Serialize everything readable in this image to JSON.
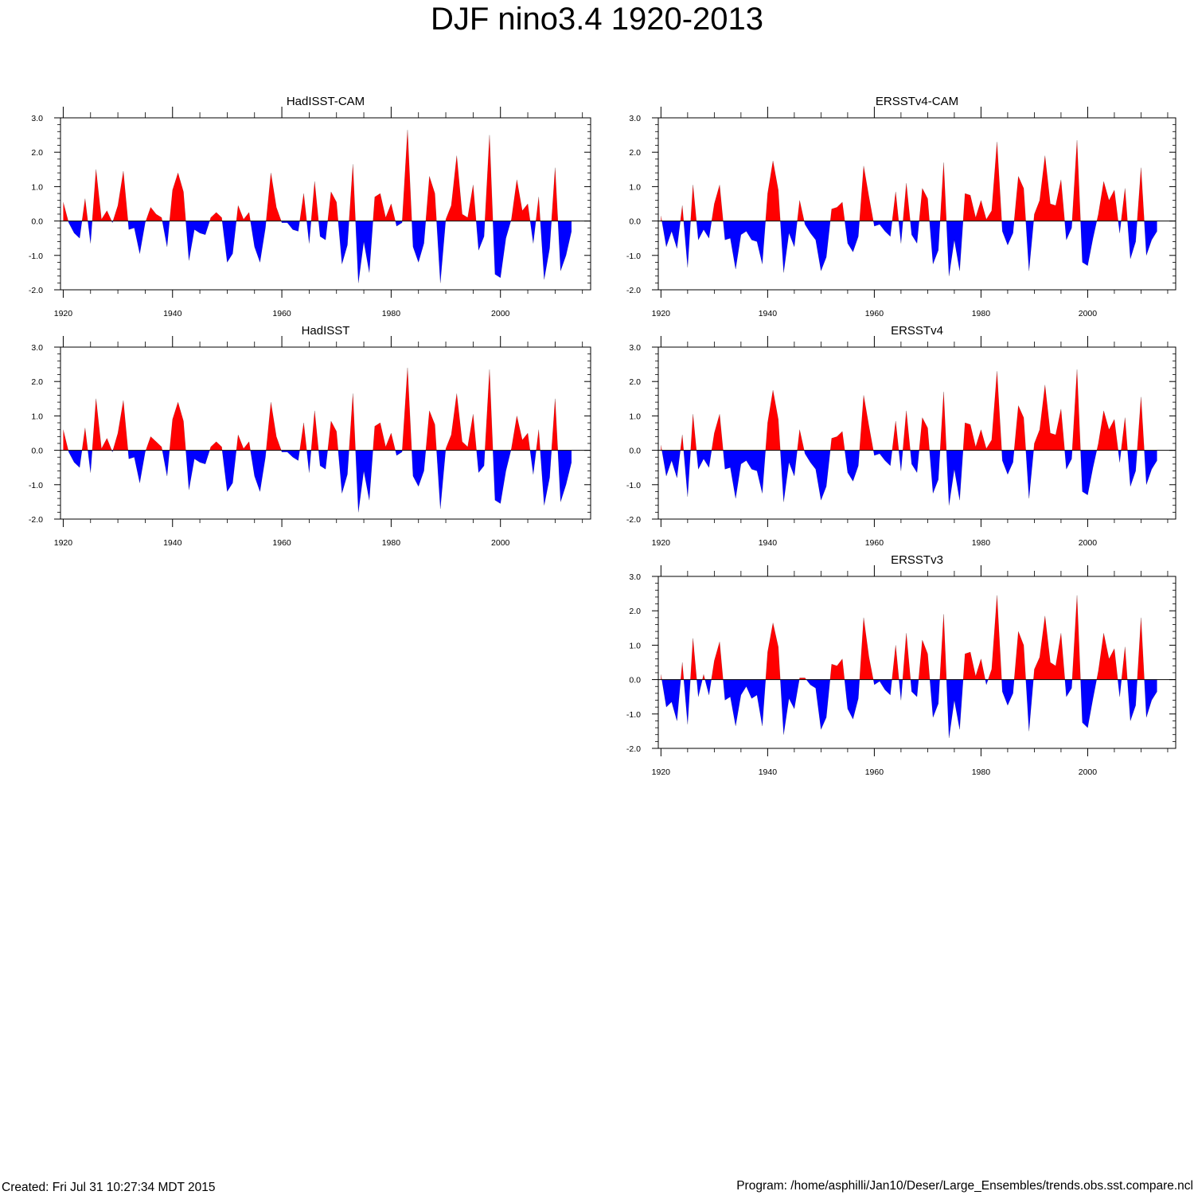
{
  "title": "DJF nino3.4 1920-2013",
  "footer": {
    "created": "Created: Fri Jul 31 10:27:34 MDT 2015",
    "program": "Program: /home/asphilli/Jan10/Deser/Large_Ensembles/trends.obs.sst.compare.ncl"
  },
  "colors": {
    "positive": "#ff0000",
    "negative": "#0000ff",
    "axis": "#000000"
  },
  "chart_data": [
    {
      "type": "area",
      "title": "HadISST-CAM",
      "xlabel": "",
      "ylabel": "",
      "xlim": [
        1919.5,
        2016.5
      ],
      "ylim": [
        -2.0,
        3.0
      ],
      "xticks": [
        1920,
        1940,
        1960,
        1980,
        2000
      ],
      "xtick_labels": [
        "1920",
        "1940",
        "1960",
        "1980",
        "2000"
      ],
      "yticks": [
        -2.0,
        -1.0,
        0.0,
        1.0,
        2.0,
        3.0
      ],
      "ytick_labels": [
        "-2.0",
        "-1.0",
        "0.0",
        "1.0",
        "2.0",
        "3.0"
      ],
      "x_start": 1920,
      "values": [
        0.55,
        -0.05,
        -0.35,
        -0.5,
        0.65,
        -0.65,
        1.5,
        0.05,
        0.3,
        -0.05,
        0.45,
        1.45,
        -0.25,
        -0.2,
        -0.95,
        -0.05,
        0.4,
        0.2,
        0.1,
        -0.75,
        0.9,
        1.4,
        0.85,
        -1.15,
        -0.25,
        -0.35,
        -0.4,
        0.1,
        0.25,
        0.1,
        -1.2,
        -0.95,
        0.45,
        0.05,
        0.25,
        -0.75,
        -1.2,
        -0.2,
        1.4,
        0.4,
        -0.05,
        -0.05,
        -0.25,
        -0.3,
        0.8,
        -0.65,
        1.15,
        -0.45,
        -0.55,
        0.85,
        0.55,
        -1.25,
        -0.7,
        1.65,
        -1.8,
        -0.6,
        -1.5,
        0.7,
        0.8,
        0.1,
        0.5,
        -0.15,
        -0.05,
        2.65,
        -0.75,
        -1.2,
        -0.65,
        1.3,
        0.8,
        -1.8,
        0.05,
        0.45,
        1.9,
        0.2,
        0.1,
        1.05,
        -0.85,
        -0.45,
        2.5,
        -1.55,
        -1.65,
        -0.5,
        0.05,
        1.2,
        0.3,
        0.5,
        -0.65,
        0.7,
        -1.7,
        -0.8,
        1.55,
        -1.45,
        -1.0,
        -0.3
      ]
    },
    {
      "type": "area",
      "title": "ERSSTv4-CAM",
      "xlabel": "",
      "ylabel": "",
      "xlim": [
        1919.5,
        2016.5
      ],
      "ylim": [
        -2.0,
        3.0
      ],
      "xticks": [
        1920,
        1940,
        1960,
        1980,
        2000
      ],
      "xtick_labels": [
        "1920",
        "1940",
        "1960",
        "1980",
        "2000"
      ],
      "yticks": [
        -2.0,
        -1.0,
        0.0,
        1.0,
        2.0,
        3.0
      ],
      "ytick_labels": [
        "-2.0",
        "-1.0",
        "0.0",
        "1.0",
        "2.0",
        "3.0"
      ],
      "x_start": 1920,
      "values": [
        0.15,
        -0.75,
        -0.3,
        -0.8,
        0.45,
        -1.35,
        1.05,
        -0.55,
        -0.25,
        -0.5,
        0.5,
        1.05,
        -0.55,
        -0.5,
        -1.4,
        -0.4,
        -0.3,
        -0.55,
        -0.6,
        -1.25,
        0.8,
        1.75,
        0.9,
        -1.5,
        -0.35,
        -0.75,
        0.6,
        -0.1,
        -0.35,
        -0.55,
        -1.45,
        -1.05,
        0.35,
        0.4,
        0.55,
        -0.65,
        -0.9,
        -0.45,
        1.6,
        0.7,
        -0.15,
        -0.1,
        -0.3,
        -0.45,
        0.85,
        -0.65,
        1.1,
        -0.4,
        -0.65,
        0.95,
        0.65,
        -1.25,
        -0.85,
        1.7,
        -1.6,
        -0.55,
        -1.45,
        0.8,
        0.75,
        0.1,
        0.6,
        0.05,
        0.3,
        2.3,
        -0.3,
        -0.7,
        -0.35,
        1.3,
        0.95,
        -1.45,
        0.2,
        0.6,
        1.9,
        0.5,
        0.45,
        1.2,
        -0.55,
        -0.2,
        2.35,
        -1.2,
        -1.3,
        -0.5,
        0.2,
        1.15,
        0.6,
        0.9,
        -0.35,
        0.95,
        -1.1,
        -0.6,
        1.55,
        -1.0,
        -0.55,
        -0.3
      ]
    },
    {
      "type": "area",
      "title": "HadISST",
      "xlabel": "",
      "ylabel": "",
      "xlim": [
        1919.5,
        2016.5
      ],
      "ylim": [
        -2.0,
        3.0
      ],
      "xticks": [
        1920,
        1940,
        1960,
        1980,
        2000
      ],
      "xtick_labels": [
        "1920",
        "1940",
        "1960",
        "1980",
        "2000"
      ],
      "yticks": [
        -2.0,
        -1.0,
        0.0,
        1.0,
        2.0,
        3.0
      ],
      "ytick_labels": [
        "-2.0",
        "-1.0",
        "0.0",
        "1.0",
        "2.0",
        "3.0"
      ],
      "x_start": 1920,
      "values": [
        0.6,
        -0.05,
        -0.35,
        -0.5,
        0.65,
        -0.65,
        1.5,
        0.05,
        0.35,
        -0.05,
        0.5,
        1.45,
        -0.25,
        -0.2,
        -0.95,
        -0.05,
        0.4,
        0.25,
        0.1,
        -0.75,
        0.9,
        1.4,
        0.85,
        -1.15,
        -0.25,
        -0.35,
        -0.4,
        0.1,
        0.25,
        0.1,
        -1.2,
        -0.95,
        0.45,
        0.05,
        0.25,
        -0.75,
        -1.2,
        -0.2,
        1.4,
        0.4,
        -0.05,
        -0.05,
        -0.2,
        -0.3,
        0.8,
        -0.65,
        1.15,
        -0.45,
        -0.55,
        0.85,
        0.55,
        -1.25,
        -0.7,
        1.65,
        -1.8,
        -0.6,
        -1.45,
        0.7,
        0.8,
        0.1,
        0.5,
        -0.15,
        -0.05,
        2.4,
        -0.75,
        -1.05,
        -0.6,
        1.15,
        0.75,
        -1.7,
        0.05,
        0.45,
        1.65,
        0.25,
        0.1,
        1.05,
        -0.65,
        -0.45,
        2.35,
        -1.45,
        -1.55,
        -0.6,
        0.05,
        1.0,
        0.3,
        0.5,
        -0.7,
        0.6,
        -1.6,
        -0.8,
        1.5,
        -1.5,
        -1.0,
        -0.35
      ]
    },
    {
      "type": "area",
      "title": "ERSSTv4",
      "xlabel": "",
      "ylabel": "",
      "xlim": [
        1919.5,
        2016.5
      ],
      "ylim": [
        -2.0,
        3.0
      ],
      "xticks": [
        1920,
        1940,
        1960,
        1980,
        2000
      ],
      "xtick_labels": [
        "1920",
        "1940",
        "1960",
        "1980",
        "2000"
      ],
      "yticks": [
        -2.0,
        -1.0,
        0.0,
        1.0,
        2.0,
        3.0
      ],
      "ytick_labels": [
        "-2.0",
        "-1.0",
        "0.0",
        "1.0",
        "2.0",
        "3.0"
      ],
      "x_start": 1920,
      "values": [
        0.15,
        -0.75,
        -0.3,
        -0.8,
        0.45,
        -1.35,
        1.05,
        -0.55,
        -0.25,
        -0.5,
        0.5,
        1.05,
        -0.55,
        -0.5,
        -1.4,
        -0.4,
        -0.3,
        -0.55,
        -0.6,
        -1.25,
        0.8,
        1.75,
        0.9,
        -1.5,
        -0.35,
        -0.75,
        0.6,
        -0.1,
        -0.35,
        -0.55,
        -1.45,
        -1.05,
        0.35,
        0.4,
        0.55,
        -0.65,
        -0.9,
        -0.45,
        1.6,
        0.7,
        -0.15,
        -0.1,
        -0.3,
        -0.45,
        0.85,
        -0.6,
        1.15,
        -0.4,
        -0.65,
        0.95,
        0.65,
        -1.25,
        -0.85,
        1.7,
        -1.6,
        -0.55,
        -1.45,
        0.8,
        0.75,
        0.1,
        0.6,
        0.05,
        0.3,
        2.3,
        -0.3,
        -0.7,
        -0.35,
        1.3,
        0.95,
        -1.4,
        0.2,
        0.6,
        1.9,
        0.5,
        0.45,
        1.2,
        -0.55,
        -0.25,
        2.35,
        -1.2,
        -1.3,
        -0.5,
        0.2,
        1.15,
        0.6,
        0.9,
        -0.35,
        0.95,
        -1.05,
        -0.6,
        1.55,
        -1.0,
        -0.55,
        -0.3
      ]
    },
    {
      "type": "area",
      "title": "ERSSTv3",
      "xlabel": "",
      "ylabel": "",
      "xlim": [
        1919.5,
        2016.5
      ],
      "ylim": [
        -2.0,
        3.0
      ],
      "xticks": [
        1920,
        1940,
        1960,
        1980,
        2000
      ],
      "xtick_labels": [
        "1920",
        "1940",
        "1960",
        "1980",
        "2000"
      ],
      "yticks": [
        -2.0,
        -1.0,
        0.0,
        1.0,
        2.0,
        3.0
      ],
      "ytick_labels": [
        "-2.0",
        "-1.0",
        "0.0",
        "1.0",
        "2.0",
        "3.0"
      ],
      "x_start": 1920,
      "values": [
        0.15,
        -0.8,
        -0.65,
        -1.2,
        0.5,
        -1.3,
        1.2,
        -0.5,
        0.15,
        -0.45,
        0.55,
        1.1,
        -0.6,
        -0.5,
        -1.35,
        -0.45,
        -0.2,
        -0.55,
        -0.45,
        -1.35,
        0.8,
        1.65,
        0.95,
        -1.6,
        -0.55,
        -0.85,
        0.05,
        0.05,
        -0.15,
        -0.25,
        -1.45,
        -1.1,
        0.45,
        0.4,
        0.6,
        -0.85,
        -1.15,
        -0.55,
        1.8,
        0.65,
        -0.15,
        -0.05,
        -0.3,
        -0.45,
        1.0,
        -0.6,
        1.35,
        -0.35,
        -0.5,
        1.15,
        0.75,
        -1.1,
        -0.7,
        1.9,
        -1.7,
        -0.6,
        -1.45,
        0.75,
        0.8,
        0.1,
        0.6,
        -0.15,
        0.3,
        2.45,
        -0.35,
        -0.75,
        -0.4,
        1.4,
        1.0,
        -1.5,
        0.3,
        0.65,
        1.85,
        0.5,
        0.4,
        1.35,
        -0.5,
        -0.25,
        2.45,
        -1.25,
        -1.4,
        -0.55,
        0.25,
        1.35,
        0.6,
        0.9,
        -0.5,
        0.95,
        -1.2,
        -0.75,
        1.8,
        -1.1,
        -0.6,
        -0.35
      ]
    }
  ]
}
